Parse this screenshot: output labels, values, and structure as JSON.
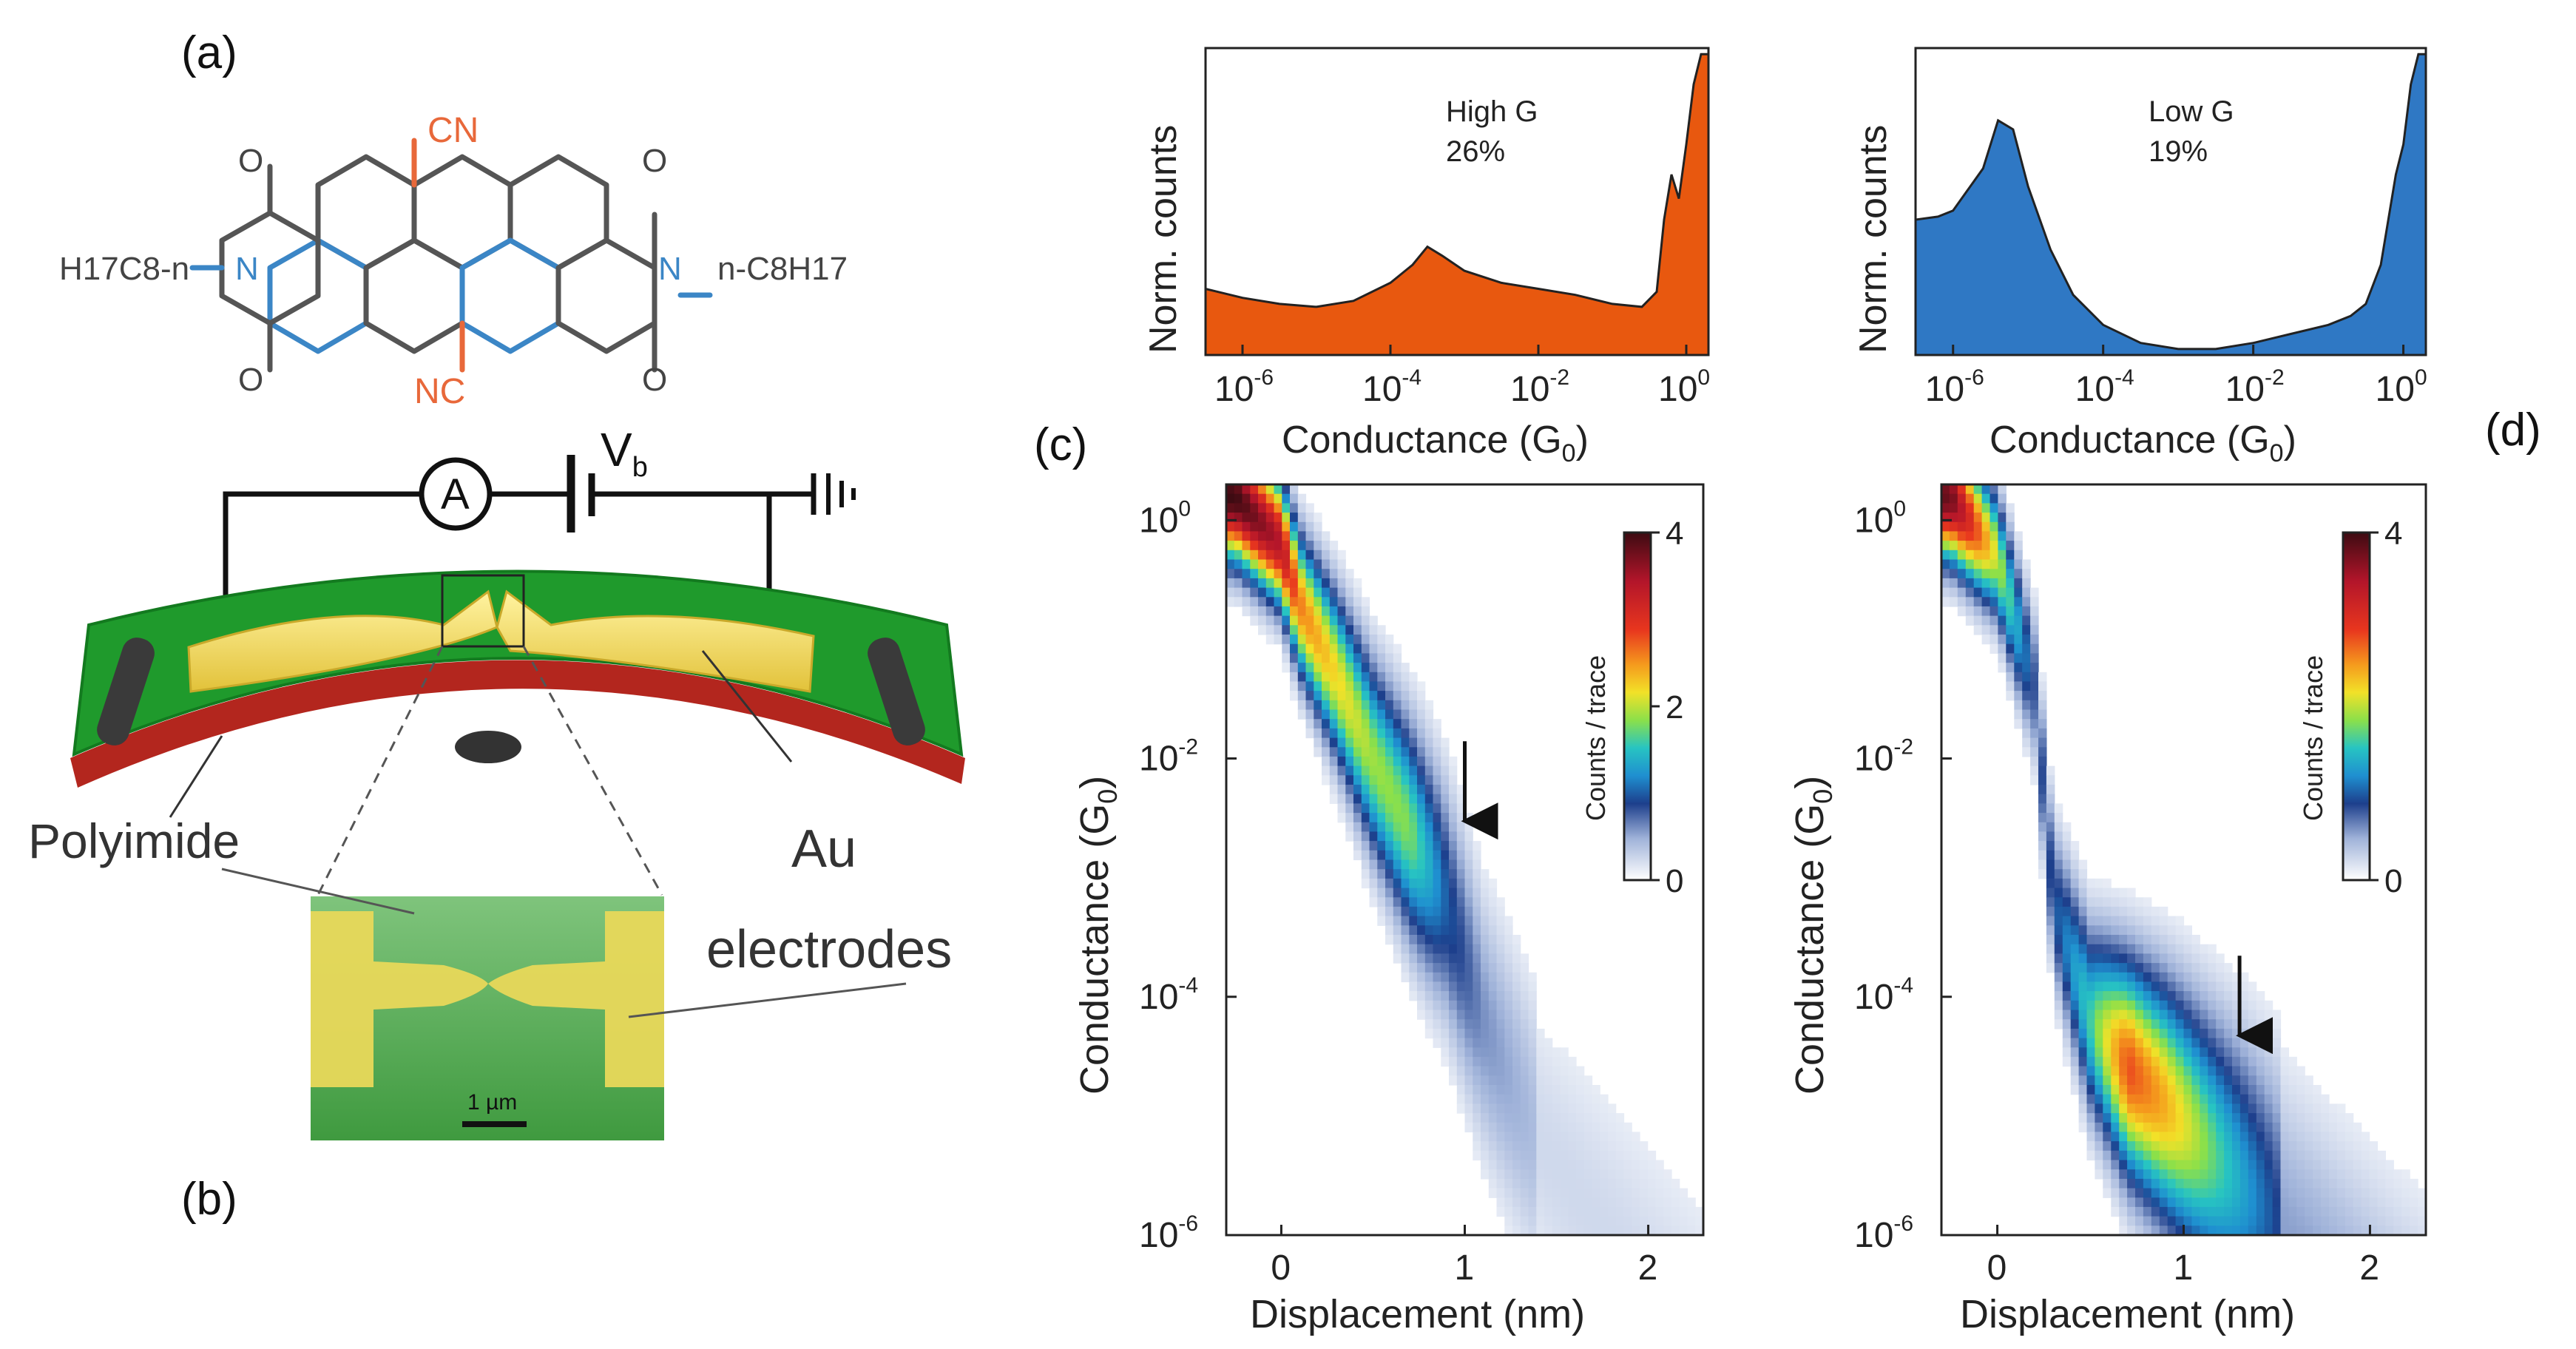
{
  "panels": {
    "a": "(a)",
    "b": "(b)",
    "c": "(c)",
    "d": "(d)"
  },
  "molecule": {
    "left_chain": "H17C8-n",
    "right_chain": "n-C8H17",
    "cn_top": "CN",
    "cn_bottom": "NC",
    "n_label": "N",
    "o_label": "O",
    "colors": {
      "cyano": "#e8683a",
      "imide": "#3b86c6",
      "bond": "#555555"
    }
  },
  "device": {
    "ammeter": "A",
    "bias": "V",
    "bias_sub": "b",
    "polyimide": "Polyimide",
    "au_line1": "Au",
    "au_line2": "electrodes",
    "scale_bar": "1 µm",
    "colors": {
      "substrate": "#1f9a2c",
      "electrode": "#f2d84a",
      "edge": "#b3261e"
    }
  },
  "histograms": [
    {
      "id": "high-g",
      "label": "High G",
      "percent": "26%",
      "ylabel": "Norm. counts",
      "xlabel": "Conductance (G",
      "xlabel_sub": "0",
      "xlabel_end": ")",
      "ticks": [
        {
          "base": "10",
          "exp": "-6",
          "logG": -6
        },
        {
          "base": "10",
          "exp": "-4",
          "logG": -4
        },
        {
          "base": "10",
          "exp": "-2",
          "logG": -2
        },
        {
          "base": "10",
          "exp": "0",
          "logG": 0
        }
      ],
      "fill": "#e8580f"
    },
    {
      "id": "low-g",
      "label": "Low G",
      "percent": "19%",
      "ylabel": "Norm. counts",
      "xlabel": "Conductance (G",
      "xlabel_sub": "0",
      "xlabel_end": ")",
      "ticks": [
        {
          "base": "10",
          "exp": "-6",
          "logG": -6
        },
        {
          "base": "10",
          "exp": "-4",
          "logG": -4
        },
        {
          "base": "10",
          "exp": "-2",
          "logG": -2
        },
        {
          "base": "10",
          "exp": "0",
          "logG": 0
        }
      ],
      "fill": "#2f78c4"
    }
  ],
  "heatmaps": [
    {
      "id": "high-g-map",
      "ylabel": "Conductance (G",
      "ylabel_sub": "0",
      "ylabel_end": ")",
      "xlabel": "Displacement (nm)",
      "xticks": [
        "0",
        "1",
        "2"
      ],
      "yticks": [
        {
          "base": "10",
          "exp": "0"
        },
        {
          "base": "10",
          "exp": "-2"
        },
        {
          "base": "10",
          "exp": "-4"
        },
        {
          "base": "10",
          "exp": "-6"
        }
      ],
      "colorbar_label": "Counts / trace",
      "colorbar_ticks": [
        "4",
        "2",
        "0"
      ],
      "arrow_at_nm": 1.0,
      "arrow_logG": -2.6
    },
    {
      "id": "low-g-map",
      "ylabel": "Conductance (G",
      "ylabel_sub": "0",
      "ylabel_end": ")",
      "xlabel": "Displacement (nm)",
      "xticks": [
        "0",
        "1",
        "2"
      ],
      "yticks": [
        {
          "base": "10",
          "exp": "0"
        },
        {
          "base": "10",
          "exp": "-2"
        },
        {
          "base": "10",
          "exp": "-4"
        },
        {
          "base": "10",
          "exp": "-6"
        }
      ],
      "colorbar_label": "Counts / trace",
      "colorbar_ticks": [
        "4",
        "0"
      ],
      "arrow_at_nm": 1.3,
      "arrow_logG": -4.4
    }
  ],
  "chart_data": [
    {
      "type": "area",
      "title": "High G 26%",
      "xlabel": "Conductance (G0)",
      "ylabel": "Norm. counts",
      "xscale": "log",
      "xlim": [
        -6.5,
        0.3
      ],
      "ylim": [
        0,
        1
      ],
      "x": [
        -6.5,
        -6.0,
        -5.5,
        -5.0,
        -4.5,
        -4.0,
        -3.7,
        -3.5,
        -3.3,
        -3.0,
        -2.5,
        -2.0,
        -1.5,
        -1.0,
        -0.6,
        -0.4,
        -0.3,
        -0.2,
        -0.1,
        0.0,
        0.1,
        0.2,
        0.3
      ],
      "y": [
        0.22,
        0.19,
        0.17,
        0.16,
        0.18,
        0.24,
        0.3,
        0.36,
        0.33,
        0.28,
        0.24,
        0.22,
        0.2,
        0.17,
        0.16,
        0.21,
        0.45,
        0.6,
        0.52,
        0.7,
        0.9,
        1.0,
        1.0
      ]
    },
    {
      "type": "area",
      "title": "Low G 19%",
      "xlabel": "Conductance (G0)",
      "ylabel": "Norm. counts",
      "xscale": "log",
      "xlim": [
        -6.5,
        0.3
      ],
      "ylim": [
        0,
        1
      ],
      "x": [
        -6.5,
        -6.2,
        -6.0,
        -5.8,
        -5.6,
        -5.4,
        -5.2,
        -5.0,
        -4.7,
        -4.4,
        -4.0,
        -3.5,
        -3.0,
        -2.5,
        -2.0,
        -1.5,
        -1.0,
        -0.7,
        -0.5,
        -0.3,
        -0.1,
        0.0,
        0.1,
        0.2,
        0.3
      ],
      "y": [
        0.45,
        0.46,
        0.48,
        0.55,
        0.62,
        0.78,
        0.75,
        0.56,
        0.35,
        0.2,
        0.1,
        0.04,
        0.02,
        0.02,
        0.04,
        0.07,
        0.1,
        0.13,
        0.17,
        0.3,
        0.6,
        0.7,
        0.9,
        1.0,
        1.0
      ]
    },
    {
      "type": "heatmap",
      "title": "High G 2D histogram",
      "xlabel": "Displacement (nm)",
      "ylabel": "Conductance (G0)",
      "xlim": [
        -0.3,
        2.3
      ],
      "ylim_log": [
        -6,
        0.3
      ],
      "colorbar_range": [
        0,
        4
      ],
      "ridge": [
        {
          "d": -0.25,
          "logG": 0.2,
          "w": 4.0
        },
        {
          "d": 0.0,
          "logG": -0.2,
          "w": 3.4
        },
        {
          "d": 0.1,
          "logG": -0.7,
          "w": 2.6
        },
        {
          "d": 0.3,
          "logG": -1.3,
          "w": 2.2
        },
        {
          "d": 0.5,
          "logG": -2.0,
          "w": 1.9
        },
        {
          "d": 0.7,
          "logG": -2.6,
          "w": 1.8
        },
        {
          "d": 0.9,
          "logG": -3.2,
          "w": 1.0
        },
        {
          "d": 1.1,
          "logG": -4.2,
          "w": 0.6
        },
        {
          "d": 1.4,
          "logG": -5.2,
          "w": 0.4
        }
      ]
    },
    {
      "type": "heatmap",
      "title": "Low G 2D histogram",
      "xlabel": "Displacement (nm)",
      "ylabel": "Conductance (G0)",
      "xlim": [
        -0.3,
        2.3
      ],
      "ylim_log": [
        -6,
        0.3
      ],
      "colorbar_range": [
        0,
        4
      ],
      "ridge": [
        {
          "d": -0.25,
          "logG": 0.2,
          "w": 3.8
        },
        {
          "d": 0.0,
          "logG": -0.3,
          "w": 2.0
        },
        {
          "d": 0.2,
          "logG": -1.4,
          "w": 0.8
        },
        {
          "d": 0.3,
          "logG": -3.2,
          "w": 0.9
        },
        {
          "d": 0.5,
          "logG": -4.2,
          "w": 1.6
        },
        {
          "d": 0.7,
          "logG": -4.6,
          "w": 2.8
        },
        {
          "d": 0.9,
          "logG": -4.9,
          "w": 2.4
        },
        {
          "d": 1.2,
          "logG": -5.4,
          "w": 1.6
        },
        {
          "d": 1.5,
          "logG": -5.9,
          "w": 0.9
        }
      ]
    }
  ]
}
